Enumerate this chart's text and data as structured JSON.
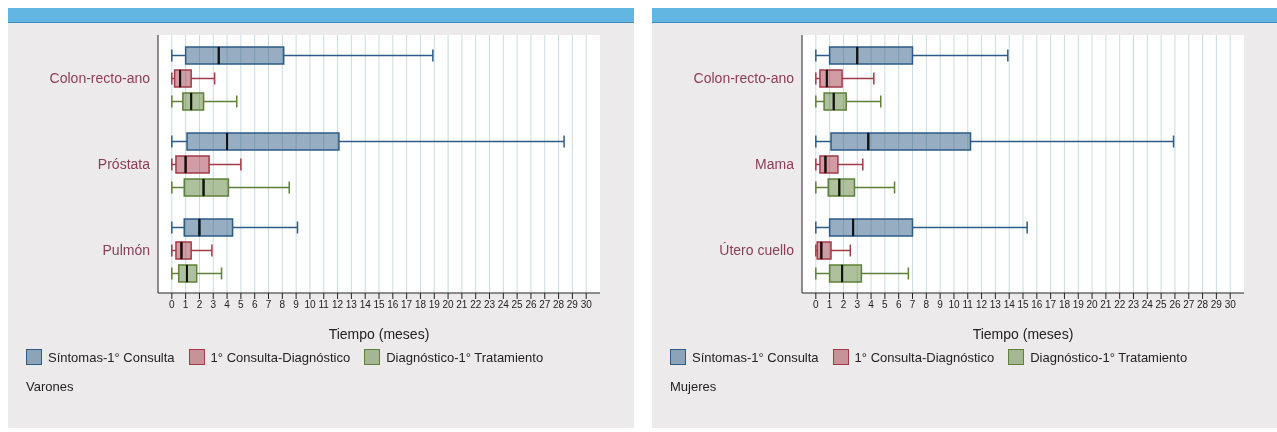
{
  "chart_data": [
    {
      "type": "box",
      "orientation": "horizontal",
      "categories": [
        "Colon-recto-ano",
        "Próstata",
        "Pulmón"
      ],
      "xlabel": "Tiempo (meses)",
      "xlim": [
        -1,
        31
      ],
      "xticks": [
        0,
        1,
        2,
        3,
        4,
        5,
        6,
        7,
        8,
        9,
        10,
        11,
        12,
        13,
        14,
        15,
        16,
        17,
        18,
        19,
        20,
        21,
        22,
        23,
        24,
        25,
        26,
        27,
        28,
        29,
        30
      ],
      "grid": "x",
      "legend": "bottom",
      "annotations": [
        "Varones"
      ],
      "series": [
        {
          "name": "Síntomas-1° Consulta",
          "color": "#2e5b86",
          "boxes": [
            {
              "low": 0,
              "q1": 1.0,
              "median": 3.4,
              "q3": 8.1,
              "high": 18.9
            },
            {
              "low": 0,
              "q1": 1.1,
              "median": 4.0,
              "q3": 12.1,
              "high": 28.4
            },
            {
              "low": 0,
              "q1": 0.9,
              "median": 2.0,
              "q3": 4.4,
              "high": 9.1
            }
          ]
        },
        {
          "name": "1° Consulta-Diagnóstico",
          "color": "#a33a48",
          "boxes": [
            {
              "low": 0,
              "q1": 0.2,
              "median": 0.6,
              "q3": 1.4,
              "high": 3.1
            },
            {
              "low": 0,
              "q1": 0.3,
              "median": 1.0,
              "q3": 2.7,
              "high": 5.0
            },
            {
              "low": 0,
              "q1": 0.3,
              "median": 0.7,
              "q3": 1.4,
              "high": 2.9
            }
          ]
        },
        {
          "name": "Diagnóstico-1° Tratamiento",
          "color": "#5d8139",
          "boxes": [
            {
              "low": 0,
              "q1": 0.8,
              "median": 1.4,
              "q3": 2.3,
              "high": 4.7
            },
            {
              "low": 0,
              "q1": 0.9,
              "median": 2.3,
              "q3": 4.1,
              "high": 8.5
            },
            {
              "low": 0,
              "q1": 0.5,
              "median": 1.1,
              "q3": 1.8,
              "high": 3.6
            }
          ]
        }
      ]
    },
    {
      "type": "box",
      "orientation": "horizontal",
      "categories": [
        "Colon-recto-ano",
        "Mama",
        "Útero cuello"
      ],
      "xlabel": "Tiempo (meses)",
      "xlim": [
        -1,
        31
      ],
      "xticks": [
        0,
        1,
        2,
        3,
        4,
        5,
        6,
        7,
        8,
        9,
        10,
        11,
        12,
        13,
        14,
        15,
        16,
        17,
        18,
        19,
        20,
        21,
        22,
        23,
        24,
        25,
        26,
        27,
        28,
        29,
        30
      ],
      "grid": "x",
      "legend": "bottom",
      "annotations": [
        "Mujeres"
      ],
      "series": [
        {
          "name": "Síntomas-1° Consulta",
          "color": "#2e5b86",
          "boxes": [
            {
              "low": 0,
              "q1": 1.0,
              "median": 3.0,
              "q3": 7.0,
              "high": 13.9
            },
            {
              "low": 0,
              "q1": 1.1,
              "median": 3.8,
              "q3": 11.2,
              "high": 25.9
            },
            {
              "low": 0,
              "q1": 1.0,
              "median": 2.7,
              "q3": 7.0,
              "high": 15.3
            }
          ]
        },
        {
          "name": "1° Consulta-Diagnóstico",
          "color": "#a33a48",
          "boxes": [
            {
              "low": 0,
              "q1": 0.3,
              "median": 0.8,
              "q3": 1.9,
              "high": 4.2
            },
            {
              "low": 0,
              "q1": 0.3,
              "median": 0.7,
              "q3": 1.6,
              "high": 3.4
            },
            {
              "low": 0,
              "q1": 0.1,
              "median": 0.4,
              "q3": 1.1,
              "high": 2.5
            }
          ]
        },
        {
          "name": "Diagnóstico-1° Tratamiento",
          "color": "#5d8139",
          "boxes": [
            {
              "low": 0,
              "q1": 0.6,
              "median": 1.3,
              "q3": 2.2,
              "high": 4.7
            },
            {
              "low": 0,
              "q1": 0.9,
              "median": 1.7,
              "q3": 2.8,
              "high": 5.7
            },
            {
              "low": 0,
              "q1": 1.0,
              "median": 1.9,
              "q3": 3.3,
              "high": 6.7
            }
          ]
        }
      ]
    }
  ]
}
